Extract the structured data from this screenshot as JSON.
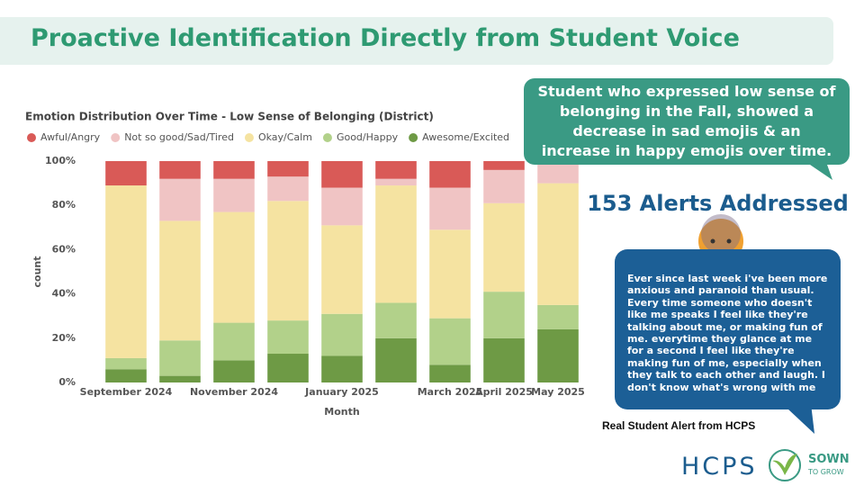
{
  "header": {
    "title": "Proactive Identification Directly from Student Voice"
  },
  "chart_data": {
    "type": "stacked_bar",
    "title": "Emotion Distribution Over Time - Low Sense of Belonging (District)",
    "x_label": "Month",
    "y_label": "count",
    "categories": [
      "September 2024",
      null,
      "November 2024",
      null,
      "January 2025",
      null,
      "March 2025",
      "April 2025",
      "May 2025"
    ],
    "series": [
      {
        "name": "Awesome/Excited",
        "color": "#6e9a45",
        "values": [
          6,
          3,
          10,
          13,
          12,
          20,
          8,
          20,
          24
        ]
      },
      {
        "name": "Good/Happy",
        "color": "#b2d18a",
        "values": [
          5,
          16,
          17,
          15,
          19,
          16,
          21,
          21,
          11
        ]
      },
      {
        "name": "Okay/Calm",
        "color": "#f5e3a1",
        "values": [
          78,
          54,
          50,
          54,
          40,
          53,
          40,
          40,
          55
        ]
      },
      {
        "name": "Not so good/Sad/Tired",
        "color": "#f0c4c4",
        "values": [
          0,
          19,
          15,
          11,
          17,
          3,
          19,
          15,
          10
        ]
      },
      {
        "name": "Awful/Angry",
        "color": "#d95a57",
        "values": [
          11,
          8,
          8,
          7,
          12,
          8,
          12,
          4,
          0
        ]
      }
    ],
    "legend_order": [
      4,
      3,
      2,
      1,
      0
    ],
    "ylim": [
      0,
      100
    ],
    "yticks": [
      {
        "value": 0,
        "label": "0%"
      },
      {
        "value": 20,
        "label": "20%"
      },
      {
        "value": 40,
        "label": "40%"
      },
      {
        "value": 60,
        "label": "60%"
      },
      {
        "value": 80,
        "label": "80%"
      },
      {
        "value": 100,
        "label": "100%"
      }
    ],
    "grid": false
  },
  "callout": {
    "text": "Student who expressed low sense of belonging in the Fall, showed a decrease in sad emojis & an increase in happy emojis over time."
  },
  "alerts": {
    "text": "153 Alerts Addressed"
  },
  "quote": {
    "text": "Ever since last week i've been more anxious and paranoid than usual. Every time someone who doesn't like me speaks I feel like they're talking about me, or making fun of me. everytime they glance at me for a second I feel like they're making fun of me, especially when they talk to each other and laugh. I don't know what's wrong with me",
    "caption": "Real Student Alert from HCPS"
  },
  "logos": {
    "hcps": "HCPS",
    "sown": "SOWN",
    "grow": "TO GROW"
  }
}
